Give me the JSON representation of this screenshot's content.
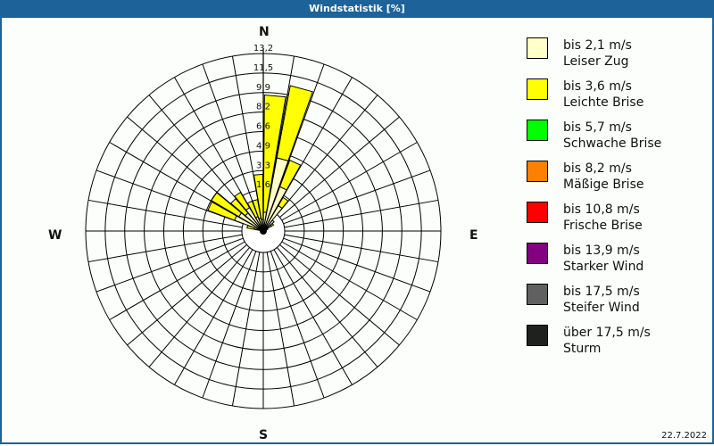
{
  "window": {
    "title": "Windstatistik [%]"
  },
  "compass": {
    "n": "N",
    "e": "E",
    "s": "S",
    "w": "W"
  },
  "legend": [
    {
      "range": "bis 2,1 m/s",
      "name": "Leiser Zug",
      "color": "#ffffc8"
    },
    {
      "range": "bis 3,6 m/s",
      "name": "Leichte Brise",
      "color": "#ffff00"
    },
    {
      "range": "bis 5,7 m/s",
      "name": "Schwache Brise",
      "color": "#00ff00"
    },
    {
      "range": "bis 8,2 m/s",
      "name": "Mäßige Brise",
      "color": "#ff8000"
    },
    {
      "range": "bis 10,8 m/s",
      "name": "Frische Brise",
      "color": "#ff0000"
    },
    {
      "range": "bis 13,9 m/s",
      "name": "Starker Wind",
      "color": "#800080"
    },
    {
      "range": "bis 17,5 m/s",
      "name": "Steifer Wind",
      "color": "#606060"
    },
    {
      "range": "über 17,5 m/s",
      "name": "Sturm",
      "color": "#202020"
    }
  ],
  "footer": {
    "date": "22.7.2022"
  },
  "chart_data": {
    "type": "radial-stacked-bar (wind rose)",
    "title": "Windstatistik [%]",
    "rings": [
      "1,6",
      "3,3",
      "4,9",
      "6,6",
      "8,2",
      "9,9",
      "11,5",
      "13,2"
    ],
    "rmax": 13.2,
    "sector_width_deg": 10,
    "directions_labels": [
      "N",
      "E",
      "S",
      "W"
    ],
    "series_names": [
      "bis 2,1 m/s",
      "bis 3,6 m/s"
    ],
    "sectors": [
      {
        "bearing": 355,
        "values": [
          1.0,
          3.8
        ]
      },
      {
        "bearing": 5,
        "values": [
          1.6,
          9.9
        ]
      },
      {
        "bearing": 15,
        "values": [
          6.3,
          6.2
        ]
      },
      {
        "bearing": 25,
        "values": [
          4.0,
          2.4
        ]
      },
      {
        "bearing": 35,
        "values": [
          2.5,
          0.8
        ]
      },
      {
        "bearing": 45,
        "values": [
          1.2,
          0.0
        ]
      },
      {
        "bearing": 55,
        "values": [
          0.8,
          0.2
        ]
      },
      {
        "bearing": 65,
        "values": [
          0.4,
          0.0
        ]
      },
      {
        "bearing": 75,
        "values": [
          0.2,
          0.0
        ]
      },
      {
        "bearing": 285,
        "values": [
          0.8,
          0.6
        ]
      },
      {
        "bearing": 295,
        "values": [
          2.6,
          2.4
        ]
      },
      {
        "bearing": 305,
        "values": [
          2.4,
          2.7
        ]
      },
      {
        "bearing": 315,
        "values": [
          2.0,
          1.6
        ]
      },
      {
        "bearing": 325,
        "values": [
          2.3,
          1.5
        ]
      },
      {
        "bearing": 335,
        "values": [
          1.3,
          1.4
        ]
      },
      {
        "bearing": 345,
        "values": [
          1.1,
          1.6
        ]
      }
    ]
  }
}
